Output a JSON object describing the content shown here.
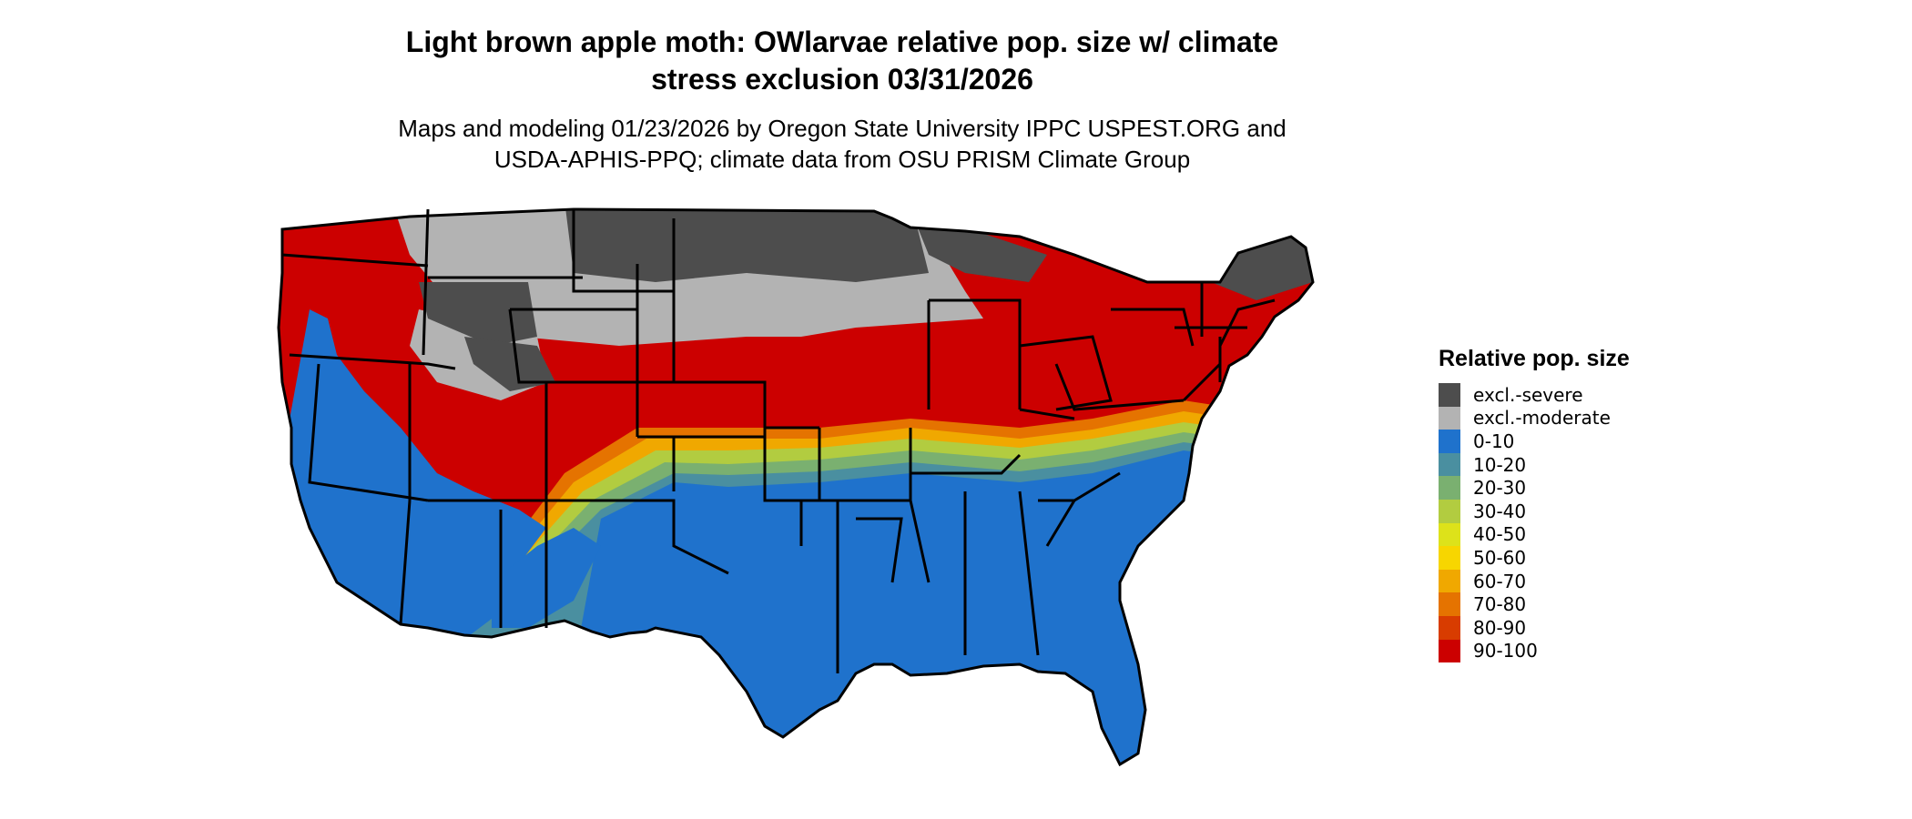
{
  "header": {
    "title_line1": "Light brown apple moth: OWlarvae relative pop. size w/ climate",
    "title_line2": "stress exclusion 03/31/2026",
    "subtitle_line1": "Maps and modeling 01/23/2026 by Oregon State University IPPC USPEST.ORG and",
    "subtitle_line2": "USDA-APHIS-PPQ; climate data from OSU PRISM Climate Group"
  },
  "legend": {
    "title": "Relative pop. size",
    "items": [
      {
        "label": "excl.-severe",
        "color": "#4d4d4d"
      },
      {
        "label": "excl.-moderate",
        "color": "#b3b3b3"
      },
      {
        "label": "0-10",
        "color": "#1f72cc"
      },
      {
        "label": "10-20",
        "color": "#4a8fa0"
      },
      {
        "label": "20-30",
        "color": "#7ab070"
      },
      {
        "label": "30-40",
        "color": "#b2cc40"
      },
      {
        "label": "40-50",
        "color": "#dde21a"
      },
      {
        "label": "50-60",
        "color": "#f7d600"
      },
      {
        "label": "60-70",
        "color": "#f0a800"
      },
      {
        "label": "70-80",
        "color": "#e57300"
      },
      {
        "label": "80-90",
        "color": "#d83c00"
      },
      {
        "label": "90-100",
        "color": "#cc0000"
      }
    ]
  },
  "map": {
    "region": "Contiguous United States",
    "colors": {
      "severe": "#4d4d4d",
      "moderate": "#b3b3b3",
      "low": "#1f72cc",
      "high": "#cc0000",
      "band1": "#4a8fa0",
      "band2": "#7ab070",
      "band3": "#b2cc40",
      "band4": "#f0a800",
      "band5": "#e57300",
      "border": "#000000"
    }
  }
}
